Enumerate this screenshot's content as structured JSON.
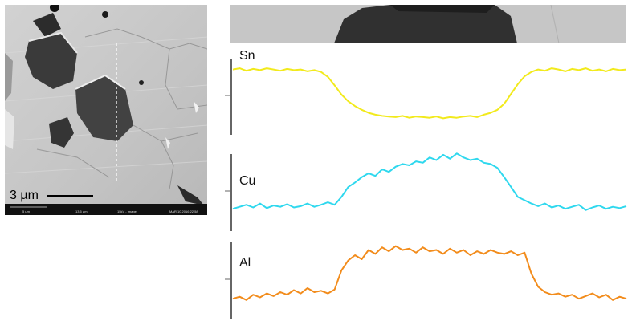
{
  "sem_image": {
    "scale_label": "3 µm",
    "info_bar": [
      "5 µm",
      "13.5 µm",
      "15kV - Image",
      "MAR 10 2016 22:58"
    ]
  },
  "profiles": [
    {
      "name": "Sn",
      "color": "#f2ea1c",
      "values": [
        0.86,
        0.88,
        0.84,
        0.87,
        0.85,
        0.88,
        0.86,
        0.84,
        0.87,
        0.85,
        0.86,
        0.83,
        0.85,
        0.82,
        0.74,
        0.6,
        0.45,
        0.34,
        0.26,
        0.2,
        0.15,
        0.12,
        0.1,
        0.09,
        0.08,
        0.1,
        0.07,
        0.09,
        0.08,
        0.07,
        0.09,
        0.06,
        0.08,
        0.07,
        0.09,
        0.1,
        0.08,
        0.12,
        0.15,
        0.2,
        0.3,
        0.46,
        0.62,
        0.75,
        0.82,
        0.86,
        0.84,
        0.88,
        0.86,
        0.83,
        0.87,
        0.85,
        0.88,
        0.84,
        0.86,
        0.83,
        0.87,
        0.85,
        0.86
      ]
    },
    {
      "name": "Cu",
      "color": "#2fd8ee",
      "values": [
        0.12,
        0.15,
        0.18,
        0.14,
        0.2,
        0.13,
        0.17,
        0.15,
        0.19,
        0.14,
        0.16,
        0.2,
        0.15,
        0.18,
        0.22,
        0.18,
        0.3,
        0.45,
        0.52,
        0.6,
        0.66,
        0.62,
        0.72,
        0.68,
        0.76,
        0.8,
        0.78,
        0.84,
        0.82,
        0.9,
        0.86,
        0.94,
        0.88,
        0.96,
        0.9,
        0.86,
        0.88,
        0.82,
        0.8,
        0.74,
        0.6,
        0.45,
        0.3,
        0.25,
        0.2,
        0.16,
        0.2,
        0.14,
        0.17,
        0.12,
        0.15,
        0.18,
        0.1,
        0.14,
        0.17,
        0.12,
        0.15,
        0.13,
        0.16
      ]
    },
    {
      "name": "Al",
      "color": "#f28c1c",
      "values": [
        0.12,
        0.15,
        0.1,
        0.18,
        0.14,
        0.2,
        0.16,
        0.22,
        0.18,
        0.25,
        0.2,
        0.28,
        0.22,
        0.24,
        0.2,
        0.26,
        0.55,
        0.7,
        0.78,
        0.72,
        0.86,
        0.8,
        0.9,
        0.84,
        0.92,
        0.86,
        0.88,
        0.82,
        0.9,
        0.84,
        0.86,
        0.8,
        0.88,
        0.82,
        0.86,
        0.78,
        0.84,
        0.8,
        0.86,
        0.82,
        0.8,
        0.84,
        0.78,
        0.82,
        0.5,
        0.3,
        0.22,
        0.18,
        0.2,
        0.15,
        0.18,
        0.12,
        0.16,
        0.2,
        0.14,
        0.18,
        0.1,
        0.15,
        0.12
      ]
    }
  ]
}
